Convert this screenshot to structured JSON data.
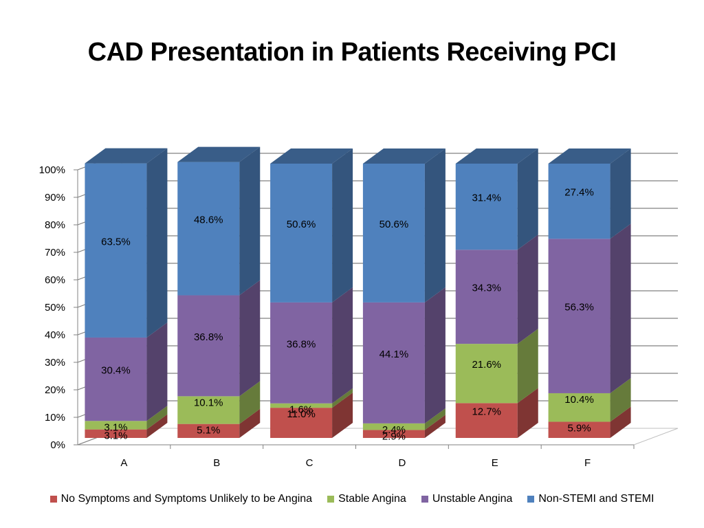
{
  "chart_data": {
    "type": "bar",
    "stacked": true,
    "percent": true,
    "title": "CAD Presentation in Patients Receiving PCI",
    "categories": [
      "A",
      "B",
      "C",
      "D",
      "E",
      "F"
    ],
    "y_ticks": [
      "0%",
      "10%",
      "20%",
      "30%",
      "40%",
      "50%",
      "60%",
      "70%",
      "80%",
      "90%",
      "100%"
    ],
    "ylim": [
      0,
      100
    ],
    "grid": true,
    "legend_position": "bottom",
    "series": [
      {
        "name": "No Symptoms and Symptoms Unlikely to be Angina",
        "color": "#c0504d",
        "values": [
          3.1,
          5.1,
          11.0,
          2.9,
          12.7,
          5.9
        ],
        "labels": [
          "3.1%",
          "5.1%",
          "11.0%",
          "2.9%",
          "12.7%",
          "5.9%"
        ]
      },
      {
        "name": "Stable Angina",
        "color": "#9bbb59",
        "values": [
          3.1,
          10.1,
          1.6,
          2.4,
          21.6,
          10.4
        ],
        "labels": [
          "3.1%",
          "10.1%",
          "1.6%",
          "2.4%",
          "21.6%",
          "10.4%"
        ]
      },
      {
        "name": "Unstable Angina",
        "color": "#8064a2",
        "values": [
          30.4,
          36.8,
          36.8,
          44.1,
          34.3,
          56.3
        ],
        "labels": [
          "30.4%",
          "36.8%",
          "36.8%",
          "44.1%",
          "34.3%",
          "56.3%"
        ]
      },
      {
        "name": "Non-STEMI and STEMI",
        "color": "#4f81bd",
        "values": [
          63.5,
          48.6,
          50.6,
          50.6,
          31.4,
          27.4
        ],
        "labels": [
          "63.5%",
          "48.6%",
          "50.6%",
          "50.6%",
          "31.4%",
          "27.4%"
        ]
      }
    ]
  }
}
